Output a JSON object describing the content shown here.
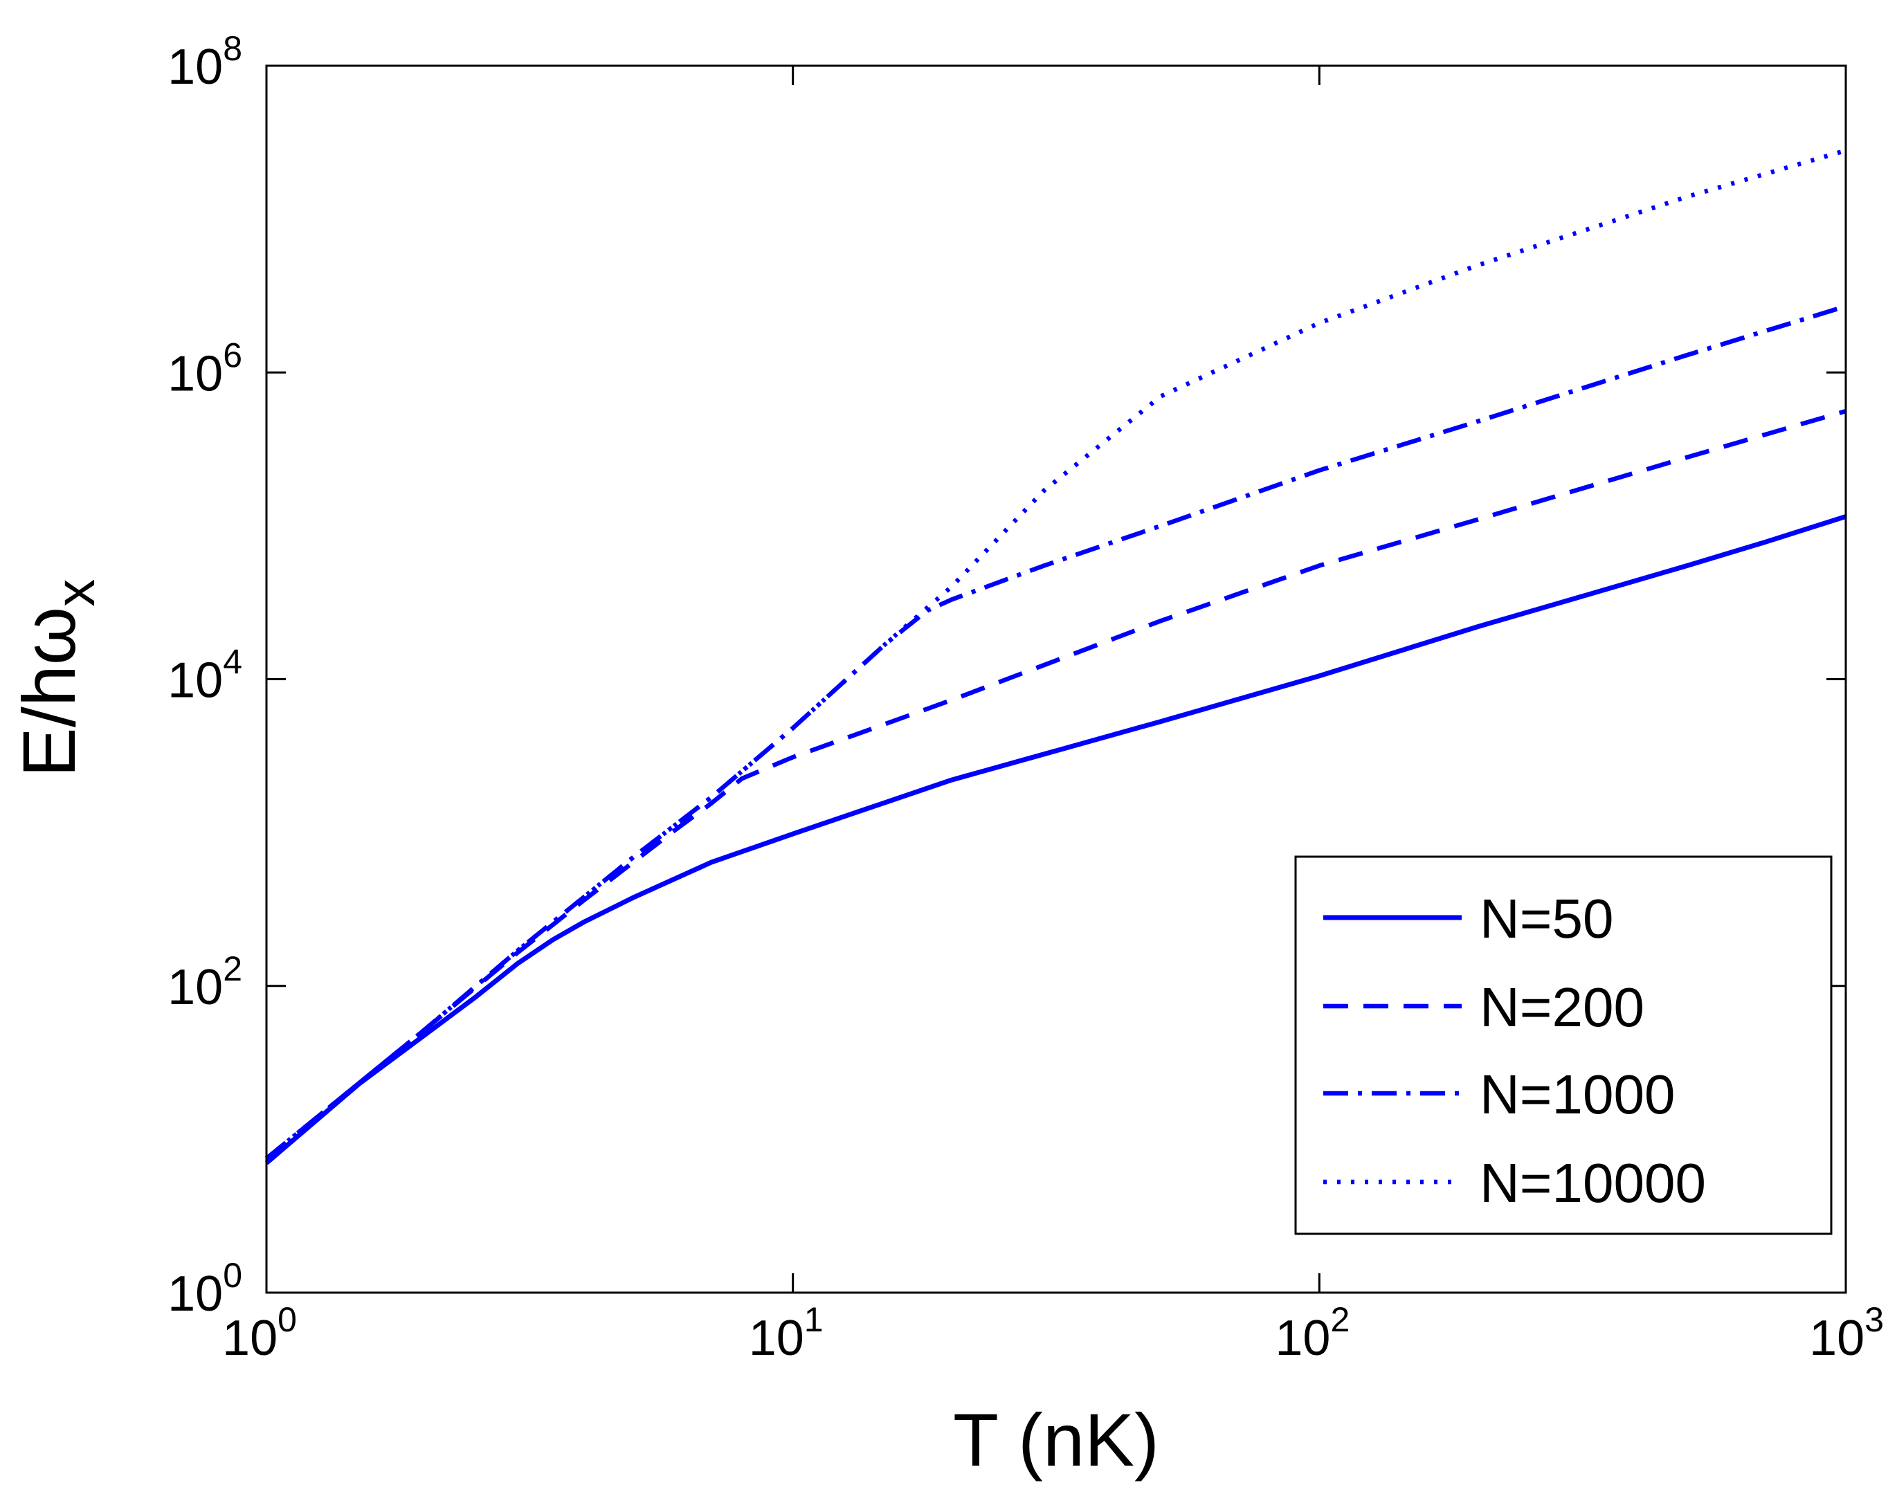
{
  "chart_data": {
    "type": "line",
    "xscale": "log",
    "yscale": "log",
    "xlim": [
      1,
      1000
    ],
    "ylim": [
      1,
      100000000
    ],
    "xlabel": "T (nK)",
    "ylabel_main": "E/hω",
    "ylabel_sub": "x",
    "x_ticks": [
      {
        "value": 1,
        "base": "10",
        "exp": "0"
      },
      {
        "value": 10,
        "base": "10",
        "exp": "1"
      },
      {
        "value": 100,
        "base": "10",
        "exp": "2"
      },
      {
        "value": 1000,
        "base": "10",
        "exp": "3"
      }
    ],
    "y_ticks": [
      {
        "value": 1,
        "base": "10",
        "exp": "0"
      },
      {
        "value": 100,
        "base": "10",
        "exp": "2"
      },
      {
        "value": 10000,
        "base": "10",
        "exp": "4"
      },
      {
        "value": 1000000,
        "base": "10",
        "exp": "6"
      },
      {
        "value": 100000000,
        "base": "10",
        "exp": "8"
      }
    ],
    "legend_position": "bottom-right",
    "color": "#0000ff",
    "series": [
      {
        "name": "N=50",
        "style": "solid",
        "x": [
          1,
          1.5,
          2,
          2.5,
          3,
          3.5,
          4,
          5,
          7,
          10,
          20,
          50,
          100,
          200,
          300,
          500,
          700,
          1000
        ],
        "y": [
          7,
          23,
          48,
          85,
          140,
          200,
          260,
          380,
          640,
          980,
          2200,
          5300,
          10500,
          22000,
          33000,
          55000,
          78000,
          115000
        ]
      },
      {
        "name": "N=200",
        "style": "dashed",
        "x": [
          1,
          2,
          3,
          4,
          5,
          6,
          7,
          8,
          10,
          20,
          50,
          100,
          200,
          500,
          1000
        ],
        "y": [
          7.5,
          52,
          165,
          360,
          650,
          1050,
          1550,
          2250,
          3100,
          7300,
          24000,
          55000,
          110000,
          280000,
          560000
        ]
      },
      {
        "name": "N=1000",
        "style": "dashdot",
        "x": [
          1,
          2,
          3,
          5,
          7,
          10,
          15,
          18,
          20,
          30,
          50,
          100,
          200,
          500,
          1000
        ],
        "y": [
          7.5,
          52,
          170,
          700,
          1700,
          4800,
          17000,
          28000,
          33000,
          55000,
          100000,
          230000,
          480000,
          1300000,
          2700000
        ]
      },
      {
        "name": "N=10000",
        "style": "dotted",
        "x": [
          1,
          2,
          3,
          5,
          7,
          10,
          15,
          20,
          30,
          50,
          100,
          200,
          500,
          1000
        ],
        "y": [
          7.5,
          52,
          170,
          700,
          1700,
          4800,
          17000,
          40000,
          170000,
          700000,
          2100000,
          5000000,
          14000000,
          28000000
        ]
      }
    ]
  }
}
